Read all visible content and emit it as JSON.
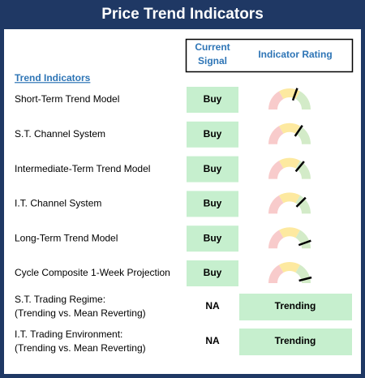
{
  "title": "Price Trend Indicators",
  "header": {
    "signal": [
      "Current",
      "Signal"
    ],
    "rating": "Indicator Rating"
  },
  "section": "Trend Indicators",
  "rows": [
    {
      "label": "Short-Term Trend Model",
      "signal": "Buy",
      "rating": 61
    },
    {
      "label": "S.T. Channel System",
      "signal": "Buy",
      "rating": 69
    },
    {
      "label": "Intermediate-Term Trend Model",
      "signal": "Buy",
      "rating": 72
    },
    {
      "label": "I.T. Channel System",
      "signal": "Buy",
      "rating": 75
    },
    {
      "label": "Long-Term Trend Model",
      "signal": "Buy",
      "rating": 89
    },
    {
      "label": "Cycle Composite 1-Week Projection",
      "signal": "Buy",
      "rating": 92
    }
  ],
  "regimes": [
    {
      "label": [
        "S.T. Trading Regime:",
        "(Trending vs. Mean Reverting)"
      ],
      "signal": "NA",
      "rating": "Trending"
    },
    {
      "label": [
        "I.T. Trading Environment:",
        "(Trending vs. Mean Reverting)"
      ],
      "signal": "NA",
      "rating": "Trending"
    }
  ]
}
